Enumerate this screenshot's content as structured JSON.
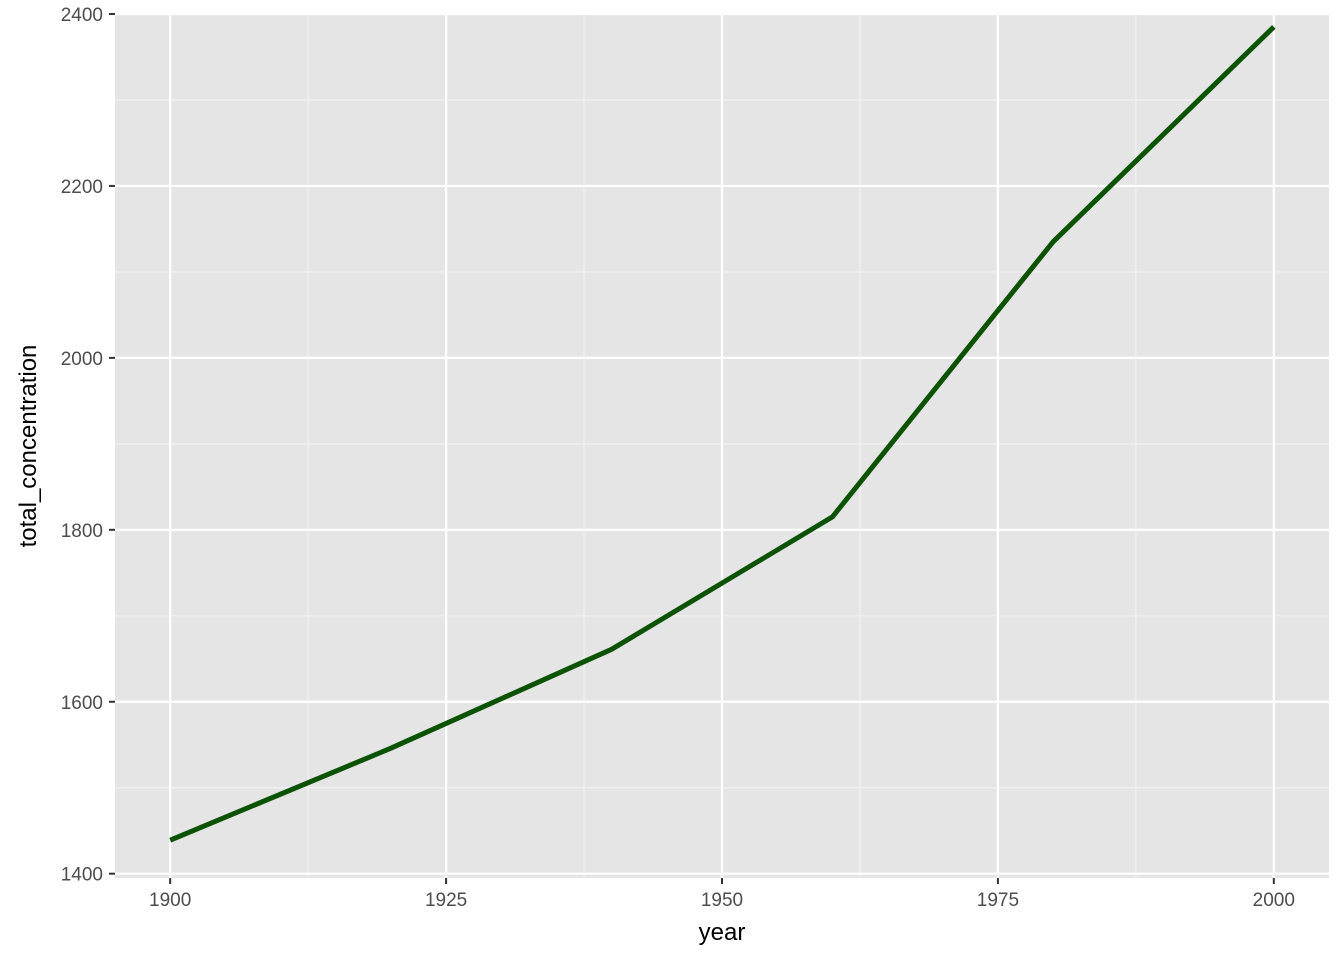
{
  "colors": {
    "panel_background": "#e5e5e5",
    "grid_major": "#ffffff",
    "grid_minor": "#f2f2f2",
    "line": "#0b5302",
    "tick": "#333333"
  },
  "chart_data": {
    "type": "line",
    "title": "",
    "xlabel": "year",
    "ylabel": "total_concentration",
    "xlim": [
      1895,
      2005
    ],
    "ylim": [
      1395,
      2400
    ],
    "x_ticks": [
      1900,
      1925,
      1950,
      1975,
      2000
    ],
    "x_tick_labels": [
      "1900",
      "1925",
      "1950",
      "1975",
      "2000"
    ],
    "y_ticks": [
      1400,
      1600,
      1800,
      2000,
      2200,
      2400
    ],
    "y_tick_labels": [
      "1400",
      "1600",
      "1800",
      "2000",
      "2200",
      "2400"
    ],
    "grid": true,
    "legend": "none",
    "series": [
      {
        "x": [
          1900,
          1920,
          1940,
          1960,
          1980,
          2000
        ],
        "values": [
          1439,
          1546,
          1661,
          1815,
          2135,
          2385
        ]
      }
    ]
  }
}
